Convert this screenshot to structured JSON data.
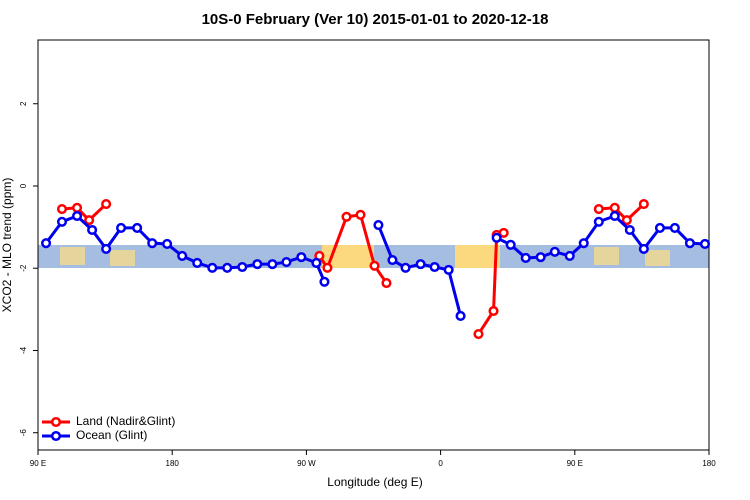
{
  "chart_data": {
    "type": "line",
    "title": "10S-0 February (Ver 10)   2015-01-01 to 2020-12-18",
    "x_label": "Longitude (deg E)",
    "y_label": "XCO2 - MLO trend (ppm)",
    "xlim": [
      90,
      540
    ],
    "ylim": [
      -6.42,
      3.55
    ],
    "xticks": [
      {
        "value": 90,
        "label": "90 E"
      },
      180,
      {
        "value": 270,
        "label": "90 W"
      },
      {
        "value": 360,
        "label": "0"
      },
      {
        "value": 450,
        "label": "90 E"
      },
      {
        "value": 540,
        "label": "180"
      }
    ],
    "yticks": [
      -6,
      -4,
      -2,
      0,
      2
    ],
    "legend": "bottom-left",
    "series": [
      {
        "name": "Land (Nadir&Glint)",
        "color": "#ff0000",
        "x": [
          106.1,
          116.2,
          124.3,
          135.7,
          null,
          278.7,
          284.1,
          296.9,
          306.3,
          315.7,
          323.7,
          null,
          385.4,
          395.5,
          397.6,
          402.3,
          null,
          466.1,
          476.8,
          484.9,
          496.3
        ],
        "values": [
          -0.56,
          -0.53,
          -0.83,
          -0.44,
          null,
          -1.7,
          -1.99,
          -0.75,
          -0.7,
          -1.94,
          -2.36,
          null,
          -3.6,
          -3.04,
          -1.19,
          -1.14,
          null,
          -0.56,
          -0.53,
          -0.83,
          -0.44
        ]
      },
      {
        "name": "Ocean (Glint)",
        "color": "#0000ee",
        "x": [
          95.4,
          106.1,
          116.2,
          126.3,
          135.7,
          145.7,
          156.5,
          166.6,
          176.6,
          186.7,
          196.8,
          206.9,
          216.9,
          227.0,
          237.1,
          247.2,
          256.6,
          266.6,
          276.7,
          282.1,
          null,
          318.3,
          327.7,
          336.5,
          346.6,
          356.0,
          365.4,
          373.4,
          null,
          397.6,
          407.0,
          417.1,
          427.1,
          436.6,
          446.6,
          456.0,
          466.1,
          476.8,
          486.9,
          496.3,
          507.1,
          517.1,
          527.2,
          537.3
        ],
        "values": [
          -1.39,
          -0.87,
          -0.73,
          -1.07,
          -1.53,
          -1.02,
          -1.02,
          -1.39,
          -1.41,
          -1.7,
          -1.87,
          -1.99,
          -1.99,
          -1.97,
          -1.9,
          -1.9,
          -1.85,
          -1.73,
          -1.87,
          -2.33,
          null,
          -0.95,
          -1.8,
          -1.99,
          -1.9,
          -1.97,
          -2.04,
          -3.16,
          null,
          -1.26,
          -1.43,
          -1.75,
          -1.73,
          -1.6,
          -1.7,
          -1.39,
          -0.87,
          -0.73,
          -1.07,
          -1.53,
          -1.02,
          -1.02,
          -1.39,
          -1.41
        ]
      }
    ]
  }
}
